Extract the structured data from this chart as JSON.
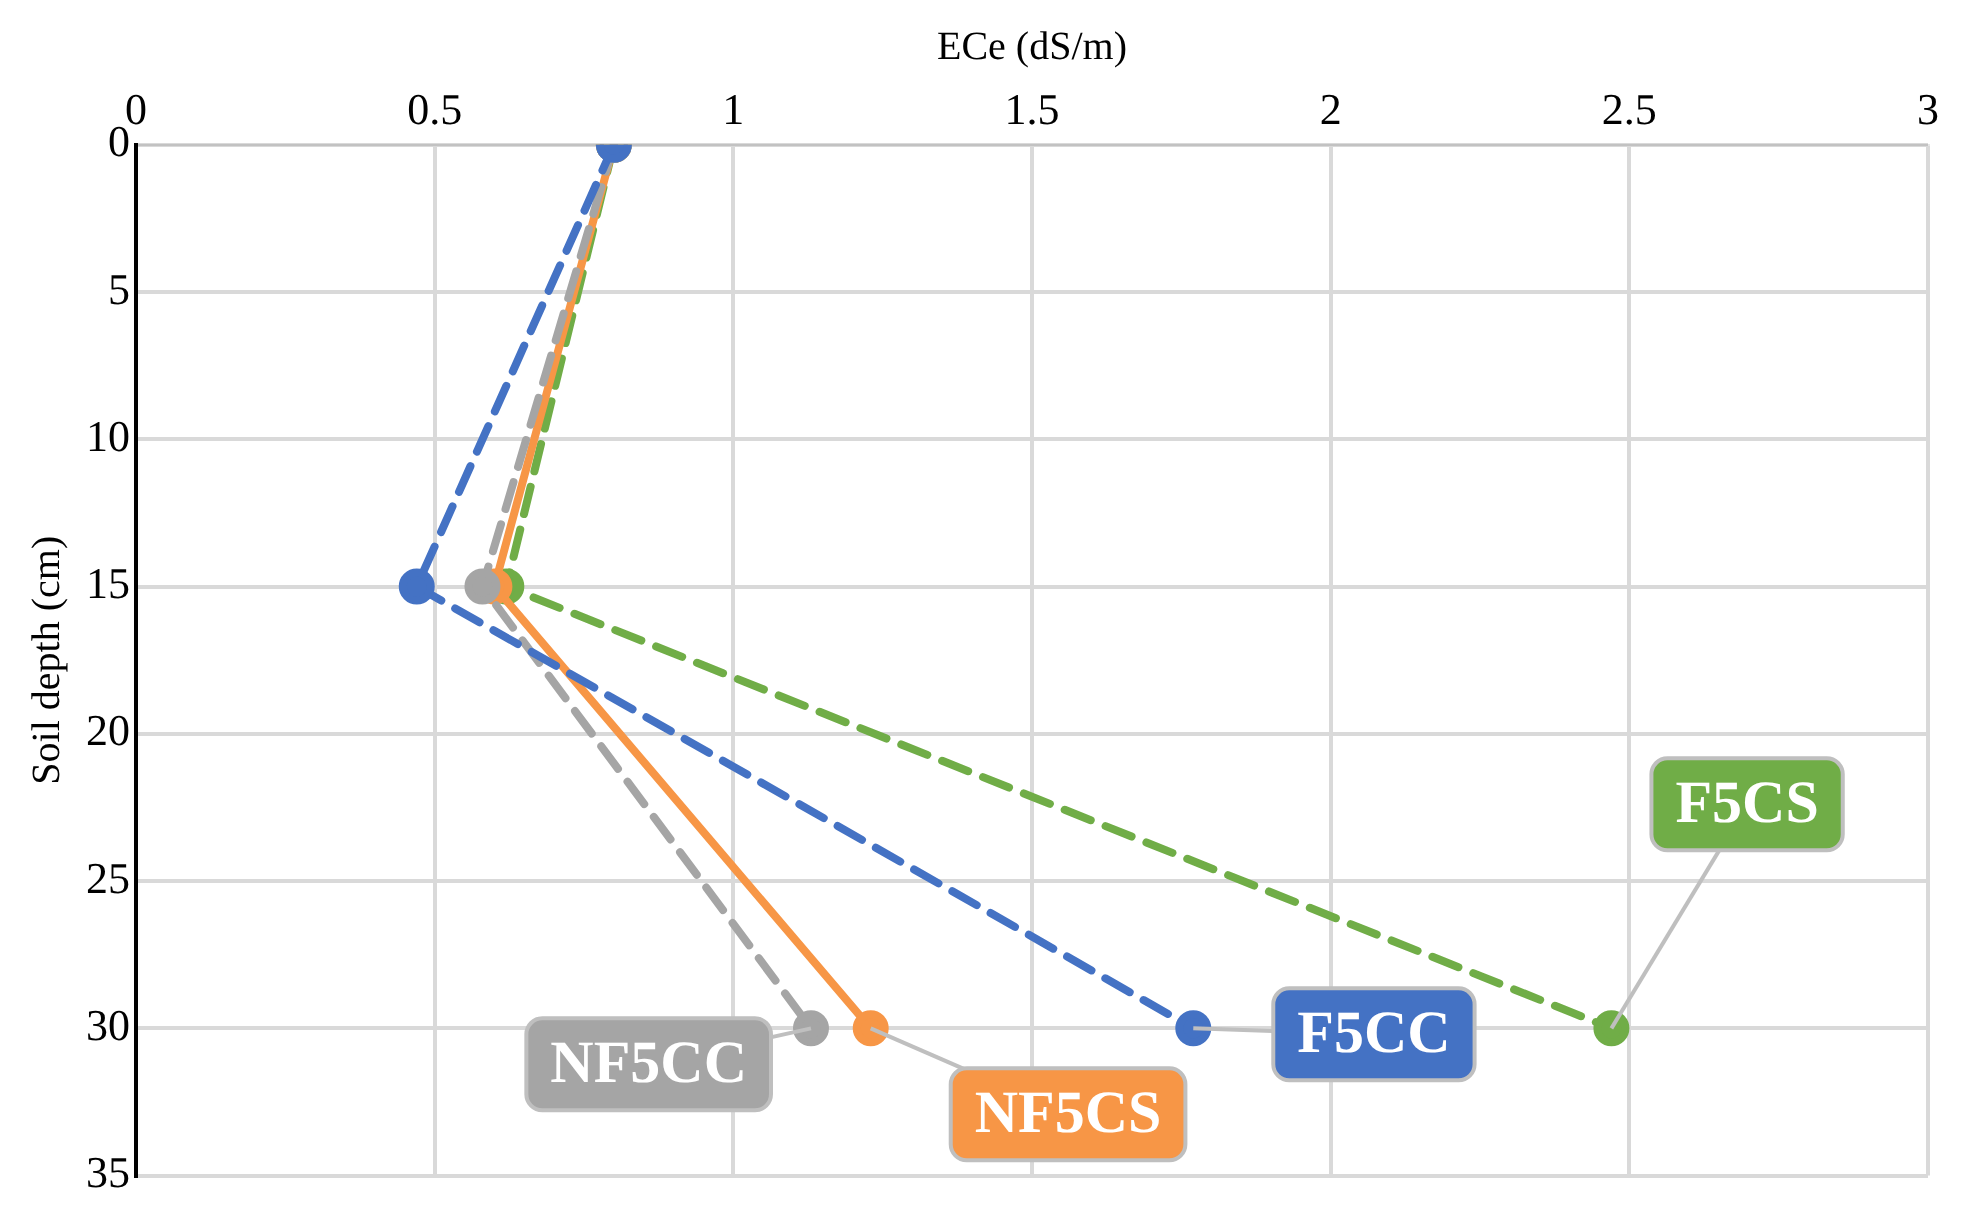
{
  "chart_data": {
    "type": "line",
    "xlabel": "ECe (dS/m)",
    "ylabel": "Soil depth (cm)",
    "xlim": [
      0,
      3
    ],
    "xticks": [
      0,
      0.5,
      1,
      1.5,
      2,
      2.5,
      3
    ],
    "ylim": [
      35,
      0
    ],
    "yticks": [
      0,
      5,
      10,
      15,
      20,
      25,
      30,
      35
    ],
    "grid": true,
    "legend": false,
    "marker": "circle",
    "series": [
      {
        "name": "F5CC",
        "color": "#4472c4",
        "line_style": "dashed",
        "x": [
          0.8,
          0.47,
          1.77
        ],
        "values": [
          0,
          15,
          30
        ]
      },
      {
        "name": "NF5CC",
        "color": "#a5a5a5",
        "line_style": "dashed",
        "x": [
          0.8,
          0.58,
          1.13
        ],
        "values": [
          0,
          15,
          30
        ]
      },
      {
        "name": "NF5CS",
        "color": "#f79646",
        "line_style": "solid",
        "x": [
          0.8,
          0.6,
          1.23
        ],
        "values": [
          0,
          15,
          30
        ]
      },
      {
        "name": "F5CS",
        "color": "#70ad47",
        "line_style": "dashed",
        "x": [
          0.8,
          0.62,
          2.47
        ],
        "values": [
          0,
          15,
          30
        ]
      }
    ]
  }
}
